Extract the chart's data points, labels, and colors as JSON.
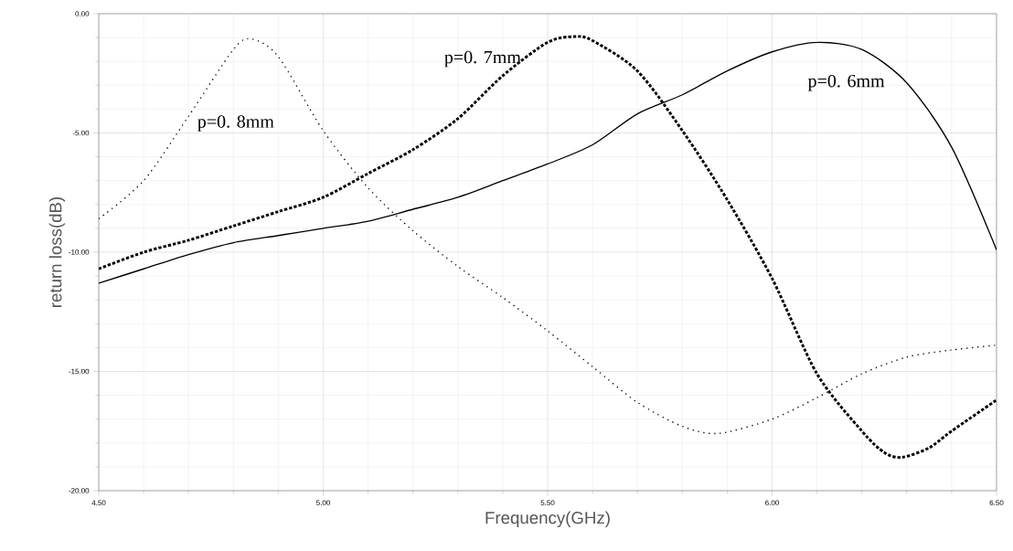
{
  "chart_data": {
    "type": "line",
    "xlabel": "Frequency(GHz)",
    "ylabel": "return loss(dB)",
    "xlim": [
      4.5,
      6.5
    ],
    "ylim": [
      -20,
      0
    ],
    "xticks": [
      {
        "value": 4.5,
        "label": "4.50"
      },
      {
        "value": 5,
        "label": "5.00"
      },
      {
        "value": 5.5,
        "label": "5.50"
      },
      {
        "value": 6,
        "label": "6.00"
      },
      {
        "value": 6.5,
        "label": "6.50"
      }
    ],
    "yticks": [
      {
        "value": -20,
        "label": "-20.00"
      },
      {
        "value": -15,
        "label": "-15.00"
      },
      {
        "value": -10,
        "label": "-10.00"
      },
      {
        "value": -5,
        "label": "-5.00"
      },
      {
        "value": 0,
        "label": "0.00"
      }
    ],
    "grid": true,
    "legend": false,
    "marker": "none",
    "series": [
      {
        "name": "p=0. 8mm",
        "color": "#000000",
        "line_style": "dotted",
        "x": [
          4.5,
          4.6,
          4.7,
          4.8,
          4.84,
          4.9,
          5.0,
          5.1,
          5.2,
          5.3,
          5.4,
          5.5,
          5.6,
          5.7,
          5.8,
          5.88,
          6.0,
          6.1,
          6.2,
          6.3,
          6.4,
          6.5
        ],
        "values": [
          -8.6,
          -7.0,
          -4.3,
          -1.5,
          -1.06,
          -1.8,
          -4.9,
          -7.3,
          -9.1,
          -10.6,
          -11.9,
          -13.3,
          -14.8,
          -16.3,
          -17.3,
          -17.6,
          -17.0,
          -16.1,
          -15.1,
          -14.4,
          -14.1,
          -13.9
        ]
      },
      {
        "name": "p=0. 7mm",
        "color": "#000000",
        "line_style": "dashed",
        "x": [
          4.5,
          4.6,
          4.7,
          4.8,
          4.9,
          5.0,
          5.1,
          5.2,
          5.3,
          5.4,
          5.5,
          5.56,
          5.6,
          5.7,
          5.8,
          5.9,
          6.0,
          6.1,
          6.2,
          6.25,
          6.29,
          6.35,
          6.4,
          6.5
        ],
        "values": [
          -10.7,
          -10.0,
          -9.5,
          -8.9,
          -8.3,
          -7.7,
          -6.7,
          -5.7,
          -4.4,
          -2.6,
          -1.2,
          -0.96,
          -1.13,
          -2.4,
          -4.9,
          -7.8,
          -11.1,
          -15.1,
          -17.5,
          -18.4,
          -18.6,
          -18.2,
          -17.5,
          -16.2
        ]
      },
      {
        "name": "p=0. 6mm",
        "color": "#000000",
        "line_style": "solid",
        "x": [
          4.5,
          4.6,
          4.7,
          4.8,
          4.9,
          5.0,
          5.1,
          5.2,
          5.3,
          5.4,
          5.5,
          5.6,
          5.7,
          5.8,
          5.9,
          6.0,
          6.1,
          6.2,
          6.3,
          6.4,
          6.5
        ],
        "values": [
          -11.3,
          -10.7,
          -10.1,
          -9.6,
          -9.3,
          -9.0,
          -8.7,
          -8.2,
          -7.7,
          -7.0,
          -6.3,
          -5.5,
          -4.2,
          -3.4,
          -2.4,
          -1.6,
          -1.2,
          -1.5,
          -2.9,
          -5.6,
          -9.9
        ]
      }
    ]
  }
}
